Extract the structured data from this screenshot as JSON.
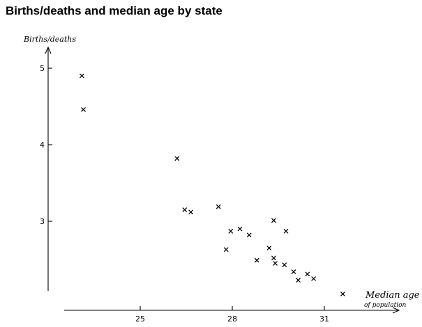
{
  "title": "Births/deaths and median age by state",
  "chart_data": {
    "type": "scatter",
    "title": "Births/deaths and median age by state",
    "xlabel": "Median age",
    "xlabel_sub": "of population",
    "ylabel": "Births/deaths",
    "xlim": [
      22.2,
      33.0
    ],
    "ylim": [
      1.1,
      5.3
    ],
    "xticks": [
      25,
      28,
      31
    ],
    "yticks": [
      3,
      4,
      5
    ],
    "marker": "x",
    "grid": false,
    "points": [
      {
        "x": 23.1,
        "y": 4.9
      },
      {
        "x": 23.15,
        "y": 4.46
      },
      {
        "x": 26.2,
        "y": 3.82
      },
      {
        "x": 26.45,
        "y": 3.15
      },
      {
        "x": 26.65,
        "y": 3.12
      },
      {
        "x": 27.55,
        "y": 3.19
      },
      {
        "x": 27.8,
        "y": 2.63
      },
      {
        "x": 27.95,
        "y": 2.87
      },
      {
        "x": 28.25,
        "y": 2.9
      },
      {
        "x": 28.55,
        "y": 2.82
      },
      {
        "x": 28.8,
        "y": 2.49
      },
      {
        "x": 29.2,
        "y": 2.65
      },
      {
        "x": 29.35,
        "y": 2.52
      },
      {
        "x": 29.35,
        "y": 3.01
      },
      {
        "x": 29.4,
        "y": 2.45
      },
      {
        "x": 29.7,
        "y": 2.43
      },
      {
        "x": 29.75,
        "y": 2.87
      },
      {
        "x": 30.0,
        "y": 2.34
      },
      {
        "x": 30.15,
        "y": 2.23
      },
      {
        "x": 30.45,
        "y": 2.31
      },
      {
        "x": 30.65,
        "y": 2.25
      },
      {
        "x": 31.6,
        "y": 2.05
      }
    ]
  }
}
